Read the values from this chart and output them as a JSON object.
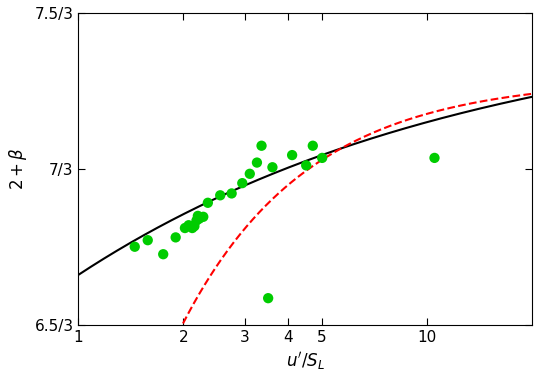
{
  "xlabel": "$u'/S_L$",
  "ylabel": "$2 + \\beta$",
  "xlim": [
    1,
    20
  ],
  "ytick_vals": [
    2.1667,
    2.3333,
    2.5
  ],
  "ytick_labels": [
    "6.5/3",
    "7/3",
    "7.5/3"
  ],
  "xtick_vals": [
    1,
    2,
    3,
    4,
    5,
    10
  ],
  "xtick_labels": [
    "1",
    "2",
    "3",
    "4",
    "5",
    "10"
  ],
  "scatter_x": [
    1.45,
    1.58,
    1.75,
    1.9,
    2.02,
    2.07,
    2.1,
    2.12,
    2.15,
    2.18,
    2.2,
    2.22,
    2.28,
    2.35,
    2.55,
    2.75,
    2.95,
    3.1,
    3.25,
    3.35,
    3.6,
    4.1,
    4.5,
    4.7,
    5.0,
    10.5,
    3.5
  ],
  "scatter_y": [
    2.25,
    2.257,
    2.242,
    2.26,
    2.27,
    2.273,
    2.272,
    2.27,
    2.272,
    2.278,
    2.283,
    2.28,
    2.282,
    2.297,
    2.305,
    2.307,
    2.318,
    2.328,
    2.34,
    2.358,
    2.335,
    2.348,
    2.337,
    2.358,
    2.345,
    2.345,
    2.195
  ],
  "scatter_color": "#00cc00",
  "scatter_size": 55,
  "black_A": 2.5,
  "black_B": 0.28,
  "black_n": 0.38,
  "red_A": 2.45,
  "red_B": 0.8,
  "red_n": 0.9,
  "ymin": 2.1667,
  "ymax": 2.5
}
